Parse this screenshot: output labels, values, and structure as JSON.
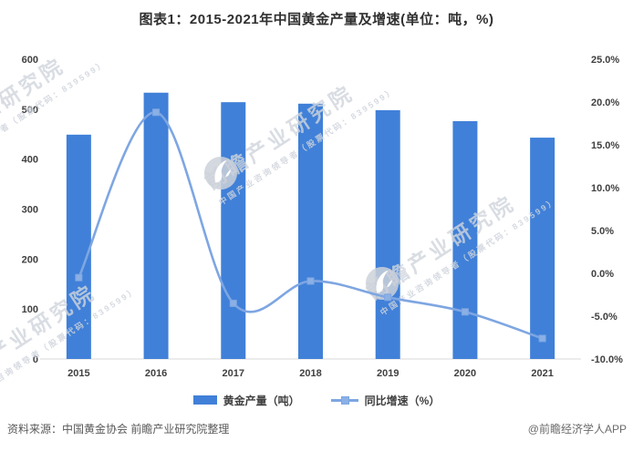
{
  "chart_data": {
    "type": "bar+line combo",
    "title": "图表1：2015-2021年中国黄金产量及增速(单位：吨，%)",
    "categories": [
      "2015",
      "2016",
      "2017",
      "2018",
      "2019",
      "2020",
      "2021"
    ],
    "series": [
      {
        "name": "黄金产量（吨）",
        "type": "bar",
        "axis": "left",
        "values": [
          449,
          533,
          514,
          511,
          498,
          476,
          443
        ]
      },
      {
        "name": "同比增速（%）",
        "type": "line",
        "axis": "right",
        "values": [
          -0.5,
          18.8,
          -3.5,
          -0.9,
          -2.8,
          -4.5,
          -7.6
        ]
      }
    ],
    "y_left": {
      "min": 0,
      "max": 600,
      "step": 100
    },
    "y_right": {
      "min": -10,
      "max": 25,
      "step": 5,
      "suffix": "%"
    },
    "grid": "off",
    "legend_position": "bottom",
    "line_smoothed": true
  },
  "legend": {
    "bar_label": "黄金产量（吨）",
    "line_label": "同比增速（%）"
  },
  "footer": {
    "source": "资料来源：中国黄金协会 前瞻产业研究院整理",
    "credit": "@前瞻经济学人APP"
  },
  "watermark": {
    "brand": "前瞻产业研究院",
    "tagline": "中国产业咨询领导者（股票代码：839599）"
  },
  "colors": {
    "bar": "#4080D8",
    "line": "#7EA6E2",
    "marker": "#8AB0E6",
    "axis_text": "#404040",
    "axis_line": "#D9D9D9",
    "title_text": "#303030",
    "watermark_gray": "#CFD4DC"
  }
}
